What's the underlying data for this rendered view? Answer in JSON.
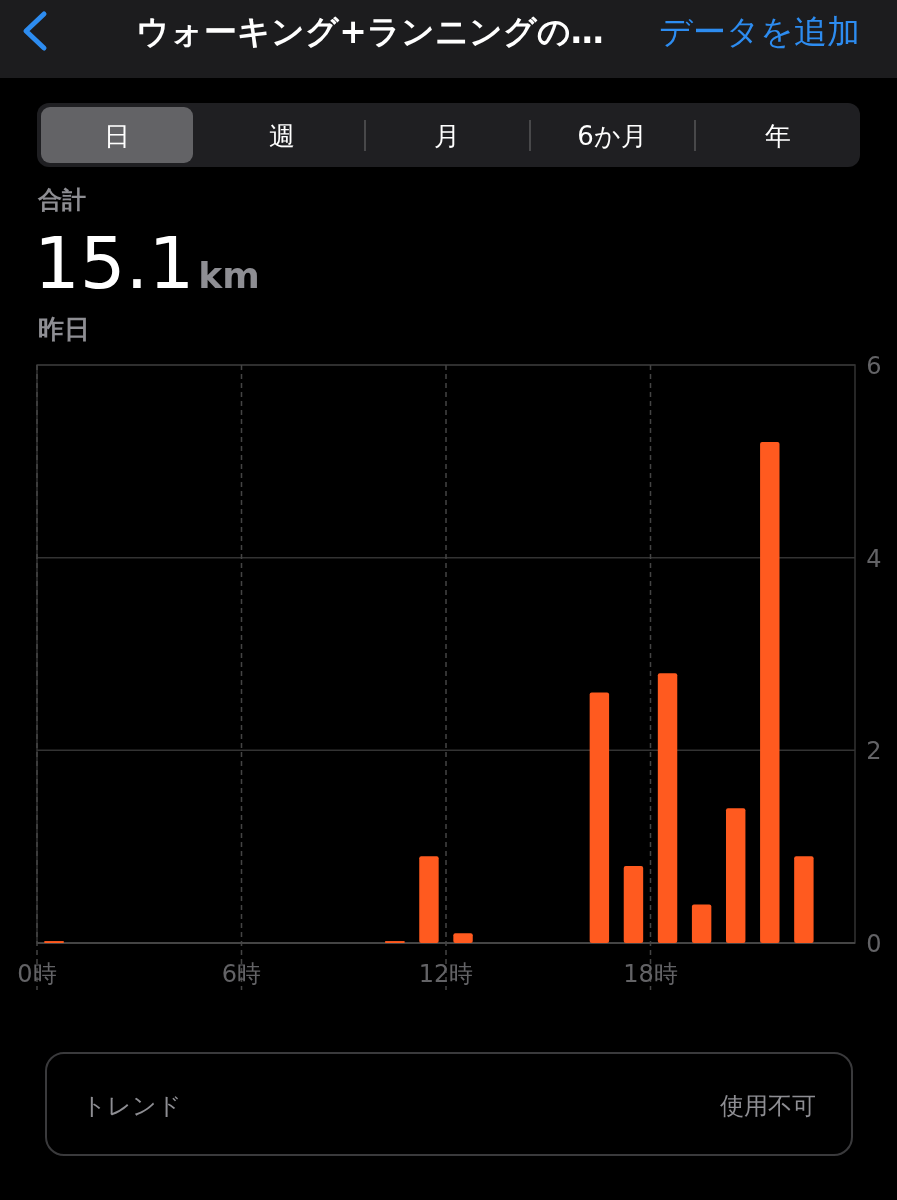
{
  "chart_data": {
    "type": "bar",
    "title": "ウォーキング+ランニングの…",
    "annotations": [
      "データを追加",
      "日",
      "週",
      "月",
      "6か月",
      "年",
      "合計",
      "15.1",
      "km",
      "昨日",
      "トレンド",
      "使用不可"
    ],
    "x": [
      0.5,
      10.5,
      11.5,
      12.5,
      16.5,
      17.5,
      18.5,
      19.5,
      20.5,
      21.5,
      22.5
    ],
    "values": [
      0.02,
      0.02,
      0.9,
      0.1,
      2.6,
      0.8,
      2.8,
      0.4,
      1.4,
      5.2,
      0.9
    ],
    "color": "#ff5a1f",
    "xlim": [
      0,
      24
    ],
    "xticks": [
      {
        "value": 0,
        "label": "0時"
      },
      {
        "value": 6,
        "label": "6時"
      },
      {
        "value": 12,
        "label": "12時"
      },
      {
        "value": 18,
        "label": "18時"
      }
    ],
    "ylim": [
      0,
      6
    ],
    "yticks": [
      0,
      2,
      4,
      6
    ],
    "grid": true
  }
}
